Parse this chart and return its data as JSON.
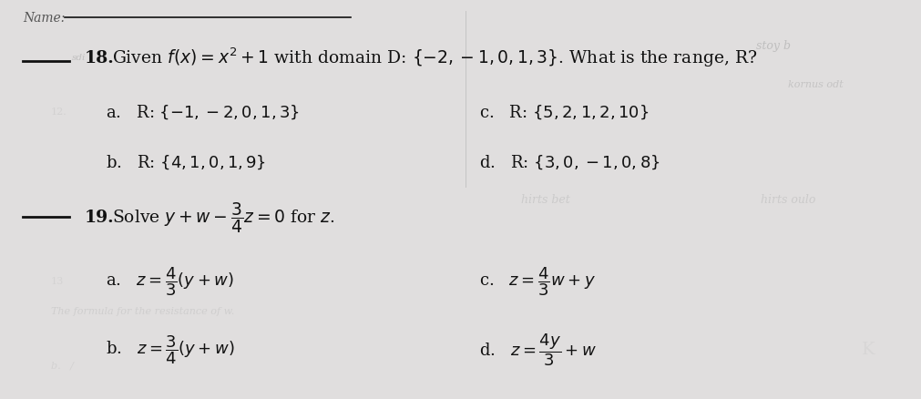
{
  "bg_color": "#e0dede",
  "text_color": "#111111",
  "figsize": [
    10.12,
    4.39
  ],
  "dpi": 100,
  "name_label": "Name:",
  "q18_prefix": "___ ",
  "q18_num": "18.",
  "q18_text": "Given $f(x) = x^2 + 1$ with domain D: $\\{-2,-1,0,1,3\\}$. What is the range, R?",
  "q18a": "a.   R: $\\{-1,-2,0,1,3\\}$",
  "q18b": "b.   R: $\\{4,1,0,1,9\\}$",
  "q18c": "c.   R: $\\{5,2,1,2,10\\}$",
  "q18d": "d.   R: $\\{3,0,-1,0,8\\}$",
  "q19_num": "19.",
  "q19_text": "Solve $y + w - \\dfrac{3}{4}z = 0$ for $z$.",
  "q19a": "a.   $z = \\dfrac{4}{3}\\left(y + w\\right)$",
  "q19b": "b.   $z = \\dfrac{3}{4}\\left(y + w\\right)$",
  "q19c": "c.   $z = \\dfrac{4}{3}w + y$",
  "q19d": "d.   $z = \\dfrac{4y}{3} + w$",
  "wm1": "stoy b",
  "wm2": "kornus odt",
  "wm3": "hirts bet",
  "wm4": "hirts oulo"
}
